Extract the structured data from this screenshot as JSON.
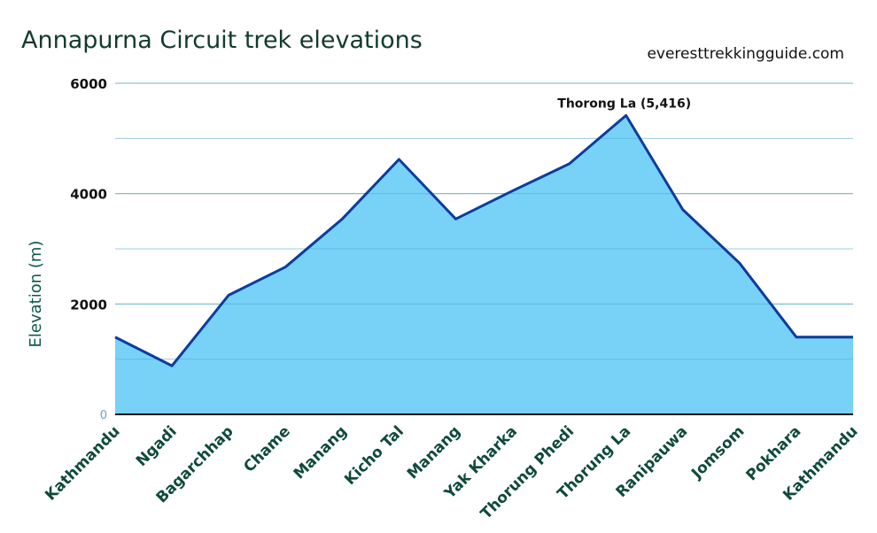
{
  "website": "everesttrekkingguide.com",
  "chart_data": {
    "type": "area",
    "title": "Annapurna Circuit trek elevations",
    "ylabel": "Elevation (m)",
    "xlabel": "",
    "ylim": [
      0,
      6000
    ],
    "yticks": [
      0,
      2000,
      4000,
      6000
    ],
    "grid": true,
    "categories": [
      "Kathmandu",
      "Ngadi",
      "Bagarchhap",
      "Chame",
      "Manang",
      "Kicho Tal",
      "Manang",
      "Yak Kharka",
      "Thorung Phedi",
      "Thorung La",
      "Ranipauwa",
      "Jomsom",
      "Pokhara",
      "Kathmandu"
    ],
    "series": [
      {
        "values": [
          1400,
          880,
          2160,
          2670,
          3540,
          4620,
          3540,
          4050,
          4540,
          5416,
          3710,
          2740,
          1400,
          1400
        ]
      }
    ],
    "annotations": [
      {
        "category_index": 9,
        "text": "Thorong La (5,416)"
      }
    ],
    "colors": {
      "fill": "#6dcdf5",
      "line": "#0a3d9e",
      "grid": "#8fc7c9",
      "title": "#123a2e",
      "axis_label": "#0e5a48"
    }
  }
}
